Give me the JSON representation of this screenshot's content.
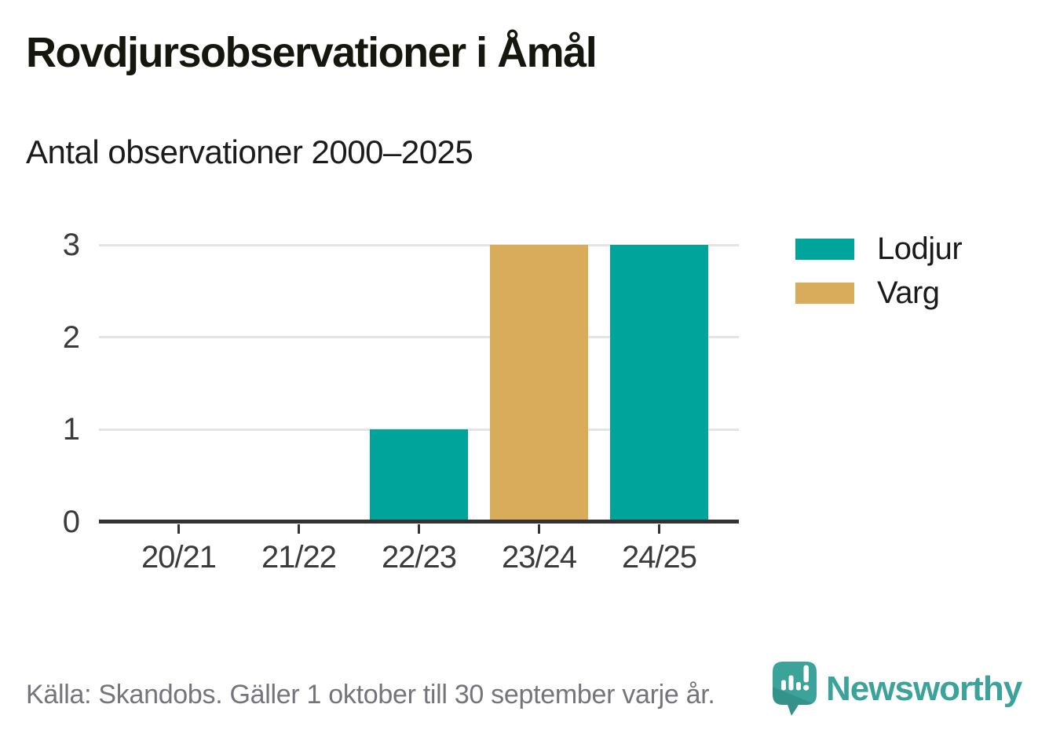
{
  "chart_data": {
    "type": "bar",
    "title": "Rovdjursobservationer i Åmål",
    "subtitle": "Antal observationer 2000–2025",
    "categories": [
      "20/21",
      "21/22",
      "22/23",
      "23/24",
      "24/25"
    ],
    "series": [
      {
        "name": "Lodjur",
        "color": "#00A49B",
        "values": [
          0,
          0,
          1,
          0,
          3
        ]
      },
      {
        "name": "Varg",
        "color": "#D9AC5B",
        "values": [
          0,
          0,
          0,
          3,
          0
        ]
      }
    ],
    "ylim": [
      0,
      3
    ],
    "yticks": [
      0,
      1,
      2,
      3
    ],
    "grid": "horizontal",
    "legend_position": "right",
    "bar_layout": "single-centered"
  },
  "footer": {
    "source": "Källa: Skandobs. Gäller 1 oktober till 30 september varje år.",
    "brand": "Newsworthy"
  },
  "colors": {
    "background": "#FFFFFF",
    "title_text": "#15170E",
    "axis_line": "#333333",
    "gridline": "#E4E4E4",
    "tick_label": "#3B3B3B",
    "source_text": "#75747C",
    "brand_teal": "#3CA39B"
  }
}
